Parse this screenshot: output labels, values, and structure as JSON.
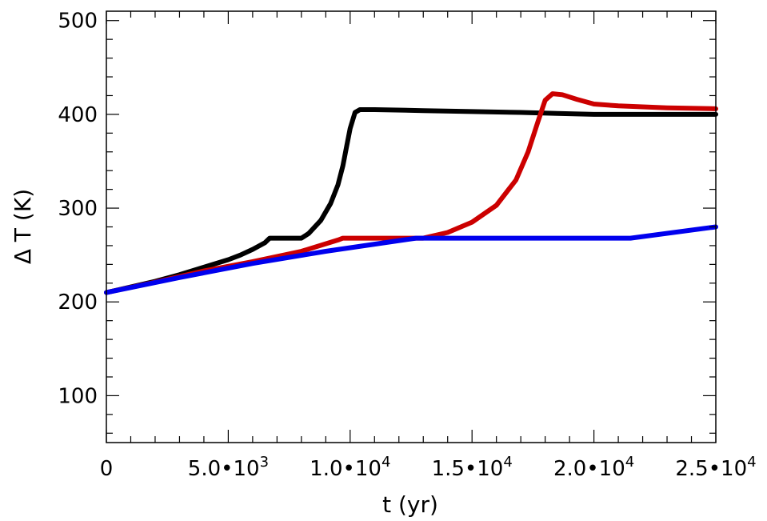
{
  "chart_data": {
    "type": "line",
    "xlabel": "t (yr)",
    "ylabel": "Δ T (K)",
    "xlim": [
      0,
      25000
    ],
    "ylim": [
      50,
      510
    ],
    "grid": false,
    "x_tick_labels": [
      {
        "value": 0,
        "mantissa": "0",
        "exp": ""
      },
      {
        "value": 5000,
        "mantissa": "5.0•10",
        "exp": "3"
      },
      {
        "value": 10000,
        "mantissa": "1.0•10",
        "exp": "4"
      },
      {
        "value": 15000,
        "mantissa": "1.5•10",
        "exp": "4"
      },
      {
        "value": 20000,
        "mantissa": "2.0•10",
        "exp": "4"
      },
      {
        "value": 25000,
        "mantissa": "2.5•10",
        "exp": "4"
      }
    ],
    "y_tick_labels": [
      {
        "value": 100,
        "label": "100"
      },
      {
        "value": 200,
        "label": "200"
      },
      {
        "value": 300,
        "label": "300"
      },
      {
        "value": 400,
        "label": "400"
      },
      {
        "value": 500,
        "label": "500"
      }
    ],
    "series": [
      {
        "color": "#000000",
        "points": [
          [
            0,
            210
          ],
          [
            1000,
            216
          ],
          [
            2000,
            222
          ],
          [
            3000,
            229
          ],
          [
            4000,
            237
          ],
          [
            5000,
            245
          ],
          [
            5500,
            250
          ],
          [
            6000,
            256
          ],
          [
            6500,
            263
          ],
          [
            6700,
            268
          ],
          [
            7000,
            268
          ],
          [
            7500,
            268
          ],
          [
            8000,
            268
          ],
          [
            8300,
            273
          ],
          [
            8800,
            287
          ],
          [
            9200,
            305
          ],
          [
            9500,
            325
          ],
          [
            9700,
            345
          ],
          [
            9850,
            365
          ],
          [
            10000,
            385
          ],
          [
            10200,
            402
          ],
          [
            10400,
            405
          ],
          [
            11000,
            405
          ],
          [
            13000,
            404
          ],
          [
            15000,
            403
          ],
          [
            17000,
            402
          ],
          [
            18500,
            401
          ],
          [
            20000,
            400
          ],
          [
            25000,
            400
          ]
        ]
      },
      {
        "color": "#cc0000",
        "points": [
          [
            0,
            210
          ],
          [
            2000,
            221
          ],
          [
            4000,
            233
          ],
          [
            6000,
            243
          ],
          [
            8000,
            254
          ],
          [
            9500,
            266
          ],
          [
            9700,
            268
          ],
          [
            11000,
            268
          ],
          [
            13000,
            268
          ],
          [
            14000,
            274
          ],
          [
            15000,
            285
          ],
          [
            16000,
            303
          ],
          [
            16800,
            330
          ],
          [
            17300,
            360
          ],
          [
            17700,
            392
          ],
          [
            18000,
            415
          ],
          [
            18300,
            422
          ],
          [
            18700,
            421
          ],
          [
            19300,
            416
          ],
          [
            20000,
            411
          ],
          [
            21000,
            409
          ],
          [
            23000,
            407
          ],
          [
            25000,
            406
          ]
        ]
      },
      {
        "color": "#0000ee",
        "points": [
          [
            0,
            210
          ],
          [
            3000,
            226
          ],
          [
            6000,
            241
          ],
          [
            9000,
            254
          ],
          [
            12700,
            268
          ],
          [
            15000,
            268
          ],
          [
            18000,
            268
          ],
          [
            21500,
            268
          ],
          [
            25000,
            280
          ]
        ]
      }
    ]
  }
}
